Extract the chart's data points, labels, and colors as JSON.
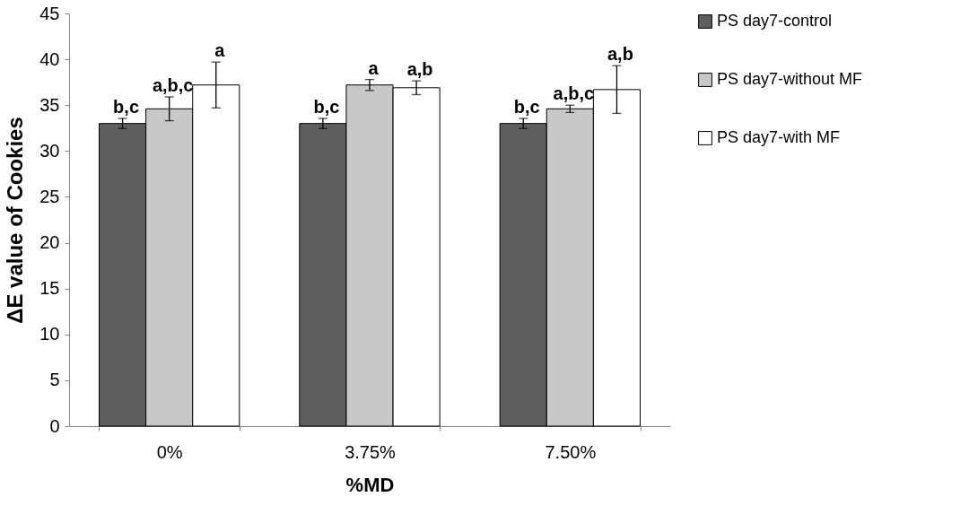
{
  "chart_data": {
    "type": "bar",
    "xlabel": "%MD",
    "ylabel": "ΔE value of Cookies",
    "categories": [
      "0%",
      "3.75%",
      "7.50%"
    ],
    "series": [
      {
        "name": "PS day7-control",
        "color": "#5f5f5f",
        "values": [
          33.0,
          33.0,
          33.0
        ],
        "errors": [
          0.55,
          0.55,
          0.55
        ],
        "value_labels": [
          "b,c",
          "b,c",
          "b,c"
        ]
      },
      {
        "name": "PS day7-without MF",
        "color": "#c8c8c8",
        "values": [
          34.6,
          37.2,
          34.6
        ],
        "errors": [
          1.3,
          0.6,
          0.4
        ],
        "value_labels": [
          "a,b,c",
          "a",
          "a,b,c"
        ]
      },
      {
        "name": "PS day7-with MF",
        "color": "#ffffff",
        "values": [
          37.2,
          36.9,
          36.7
        ],
        "errors": [
          2.5,
          0.75,
          2.6
        ],
        "value_labels": [
          "a",
          "a,b",
          "a,b"
        ]
      }
    ],
    "ylim": [
      0,
      45
    ],
    "yticks": [
      0,
      5,
      10,
      15,
      20,
      25,
      30,
      35,
      40,
      45
    ],
    "grid": false,
    "legend": "right"
  }
}
